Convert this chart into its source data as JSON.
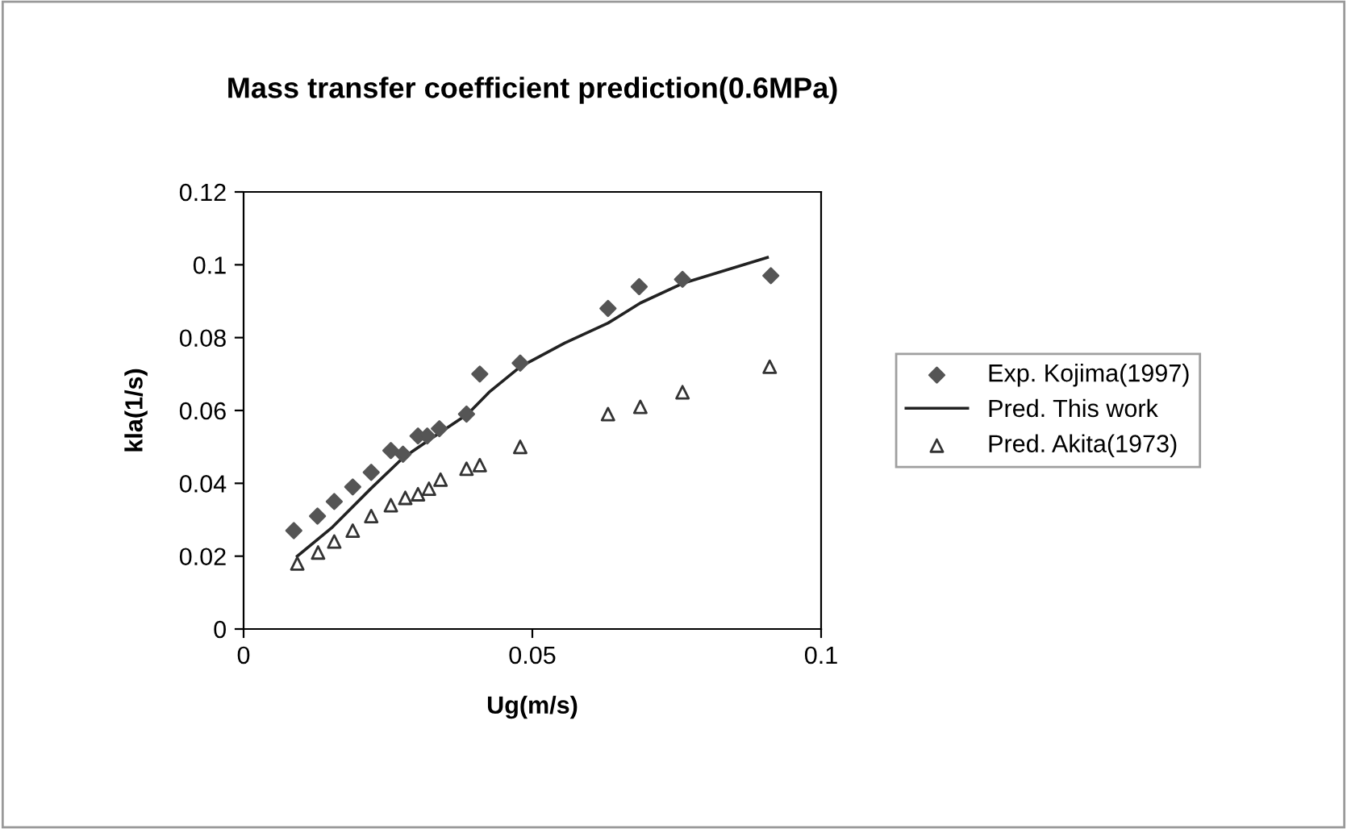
{
  "chart_data": {
    "type": "scatter",
    "title": "Mass transfer coefficient prediction(0.6MPa)",
    "xlabel": "Ug(m/s)",
    "ylabel": "kla(1/s)",
    "xlim": [
      0,
      0.1
    ],
    "xticks": [
      0,
      0.05,
      0.1
    ],
    "ylim": [
      0,
      0.12
    ],
    "yticks": [
      0,
      0.02,
      0.04,
      0.06,
      0.08,
      0.1,
      0.12
    ],
    "grid": false,
    "legend": "right",
    "series": [
      {
        "name": "Exp. Kojima(1997)",
        "marker": "diamond",
        "color": "#555555",
        "x": [
          0.0087,
          0.0128,
          0.0157,
          0.0189,
          0.0221,
          0.0255,
          0.0276,
          0.0302,
          0.0318,
          0.0339,
          0.0386,
          0.0409,
          0.0479,
          0.0631,
          0.0685,
          0.076,
          0.0913
        ],
        "values": [
          0.027,
          0.031,
          0.035,
          0.039,
          0.043,
          0.049,
          0.048,
          0.053,
          0.053,
          0.055,
          0.059,
          0.07,
          0.073,
          0.088,
          0.094,
          0.096,
          0.097
        ]
      },
      {
        "name": "Pred. This work",
        "type": "line",
        "marker": "none",
        "color": "#222222",
        "x": [
          0.0093,
          0.0154,
          0.022,
          0.0276,
          0.0341,
          0.0388,
          0.0425,
          0.0479,
          0.0556,
          0.0631,
          0.0687,
          0.0762,
          0.0907
        ],
        "values": [
          0.02,
          0.028,
          0.0385,
          0.047,
          0.054,
          0.059,
          0.065,
          0.072,
          0.0785,
          0.084,
          0.0895,
          0.095,
          0.102
        ]
      },
      {
        "name": "Pred. Akita(1973)",
        "marker": "triangle",
        "color": "#333333",
        "x": [
          0.0093,
          0.0129,
          0.0157,
          0.0189,
          0.0221,
          0.0255,
          0.028,
          0.0302,
          0.0321,
          0.0341,
          0.0386,
          0.0409,
          0.0479,
          0.0631,
          0.0687,
          0.076,
          0.0911
        ],
        "values": [
          0.018,
          0.021,
          0.024,
          0.027,
          0.031,
          0.034,
          0.036,
          0.037,
          0.0385,
          0.041,
          0.044,
          0.045,
          0.05,
          0.059,
          0.061,
          0.065,
          0.072
        ]
      }
    ]
  }
}
